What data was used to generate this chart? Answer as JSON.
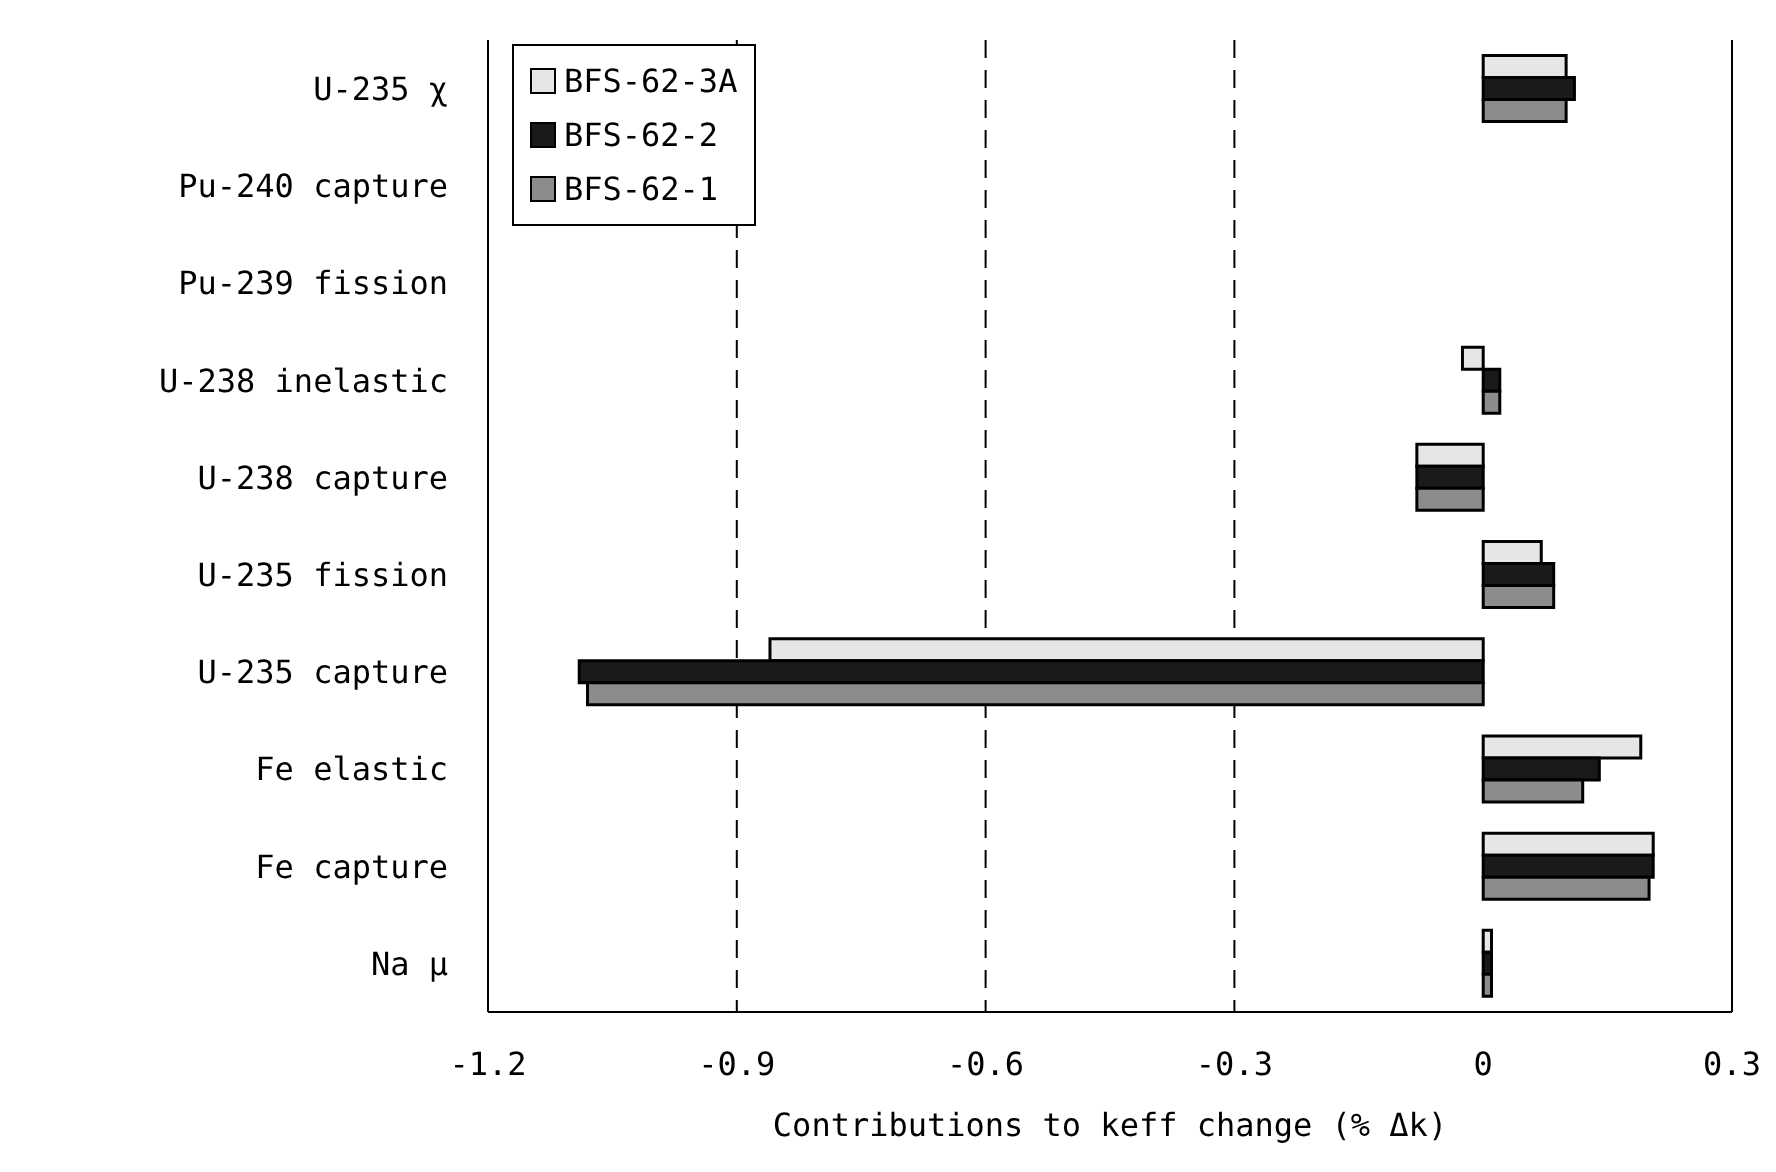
{
  "chart_data": {
    "type": "bar",
    "orientation": "horizontal",
    "xlabel": "Contributions to keff change (% Δk)",
    "categories": [
      "U-235 χ",
      "Pu-240 capture",
      "Pu-239 fission",
      "U-238 inelastic",
      "U-238 capture",
      "U-235 fission",
      "U-235 capture",
      "Fe elastic",
      "Fe capture",
      "Na μ"
    ],
    "series": [
      {
        "name": "BFS-62-3A",
        "color": "#e6e6e6",
        "values": [
          0.1,
          0,
          0,
          -0.025,
          -0.08,
          0.07,
          -0.86,
          0.19,
          0.205,
          0.01
        ]
      },
      {
        "name": "BFS-62-2",
        "color": "#1a1a1a",
        "values": [
          0.11,
          0,
          0,
          0.02,
          -0.08,
          0.085,
          -1.09,
          0.14,
          0.205,
          0.01
        ]
      },
      {
        "name": "BFS-62-1",
        "color": "#8c8c8c",
        "values": [
          0.1,
          0,
          0,
          0.02,
          -0.08,
          0.085,
          -1.08,
          0.12,
          0.2,
          0.01
        ]
      }
    ],
    "xlim": [
      -1.2,
      0.3
    ],
    "xticks": [
      -1.2,
      -0.9,
      -0.6,
      -0.3,
      0,
      0.3
    ],
    "grid": "x",
    "legend": "top left"
  }
}
